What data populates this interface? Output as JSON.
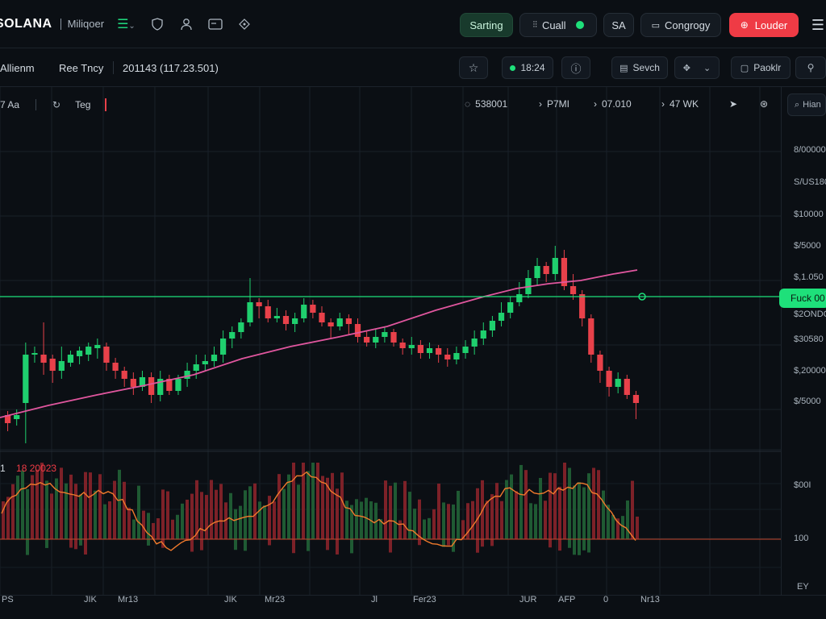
{
  "nav": {
    "logo": "SOLANA",
    "link": "Miliqoer",
    "btn_starting": "Sarting",
    "btn_cuall": "Cuall",
    "btn_sa": "SA",
    "btn_congrogy": "Congrogy",
    "btn_louder": "Louder"
  },
  "toolbar": {
    "item1": "Allienm",
    "item2": "Ree Tncy",
    "pair": "201143 (117.23.501)",
    "time": "18:24",
    "sevch": "Sevch",
    "paoklr": "Paoklr"
  },
  "chart_header": {
    "left1": "7 Aa",
    "left2": "Teg",
    "stat1": "538001",
    "stat2": "P7MI",
    "stat3": "07.010",
    "stat4": "47 WK",
    "rail_top": "Hian"
  },
  "price_axis": [
    "8/00000",
    "S/US180",
    "$10000",
    "$/5000",
    "$,1.050",
    "$2ONDO",
    "$30580",
    "$,20000",
    "$/5000"
  ],
  "price_tag": "Fuck 00",
  "indicator": {
    "label_a": "1",
    "label_b": "18",
    "label_c": "20023",
    "axis": [
      "$00I",
      "100",
      "EY"
    ]
  },
  "time_axis": [
    "PS",
    "JIK",
    "Mr13",
    "JIK",
    "Mr23",
    "Jl",
    "Fer23",
    "JUR",
    "AFP",
    "0",
    "Nr13"
  ],
  "colors": {
    "up": "#1fcf6e",
    "down": "#e8414a",
    "ma": "#e0569e",
    "level": "#1ee07a",
    "osc": "#f07a2c"
  },
  "chart_data": {
    "type": "candlestick",
    "candles": [
      [
        515,
        525,
        510,
        535
      ],
      [
        520,
        515,
        508,
        528
      ],
      [
        500,
        440,
        425,
        550
      ],
      [
        440,
        438,
        430,
        450
      ],
      [
        440,
        450,
        400,
        465
      ],
      [
        445,
        460,
        440,
        475
      ],
      [
        460,
        448,
        430,
        470
      ],
      [
        450,
        440,
        435,
        455
      ],
      [
        442,
        435,
        430,
        452
      ],
      [
        440,
        430,
        425,
        448
      ],
      [
        432,
        428,
        420,
        445
      ],
      [
        430,
        450,
        425,
        460
      ],
      [
        450,
        460,
        444,
        470
      ],
      [
        460,
        470,
        455,
        480
      ],
      [
        470,
        480,
        462,
        490
      ],
      [
        480,
        468,
        460,
        485
      ],
      [
        468,
        490,
        462,
        500
      ],
      [
        490,
        470,
        460,
        498
      ],
      [
        470,
        485,
        465,
        490
      ],
      [
        485,
        470,
        465,
        490
      ],
      [
        470,
        460,
        450,
        480
      ],
      [
        460,
        452,
        440,
        470
      ],
      [
        452,
        448,
        440,
        460
      ],
      [
        448,
        440,
        430,
        455
      ],
      [
        440,
        420,
        410,
        450
      ],
      [
        420,
        412,
        405,
        432
      ],
      [
        412,
        400,
        395,
        420
      ],
      [
        400,
        375,
        345,
        405
      ],
      [
        375,
        380,
        370,
        395
      ],
      [
        380,
        395,
        372,
        400
      ],
      [
        395,
        392,
        382,
        400
      ],
      [
        392,
        402,
        385,
        410
      ],
      [
        402,
        395,
        388,
        412
      ],
      [
        395,
        378,
        370,
        400
      ],
      [
        378,
        388,
        372,
        395
      ],
      [
        388,
        400,
        380,
        405
      ],
      [
        400,
        405,
        395,
        420
      ],
      [
        405,
        395,
        388,
        410
      ],
      [
        395,
        402,
        390,
        415
      ],
      [
        402,
        418,
        395,
        425
      ],
      [
        418,
        425,
        410,
        430
      ],
      [
        425,
        418,
        408,
        432
      ],
      [
        418,
        412,
        405,
        425
      ],
      [
        412,
        425,
        408,
        430
      ],
      [
        425,
        432,
        420,
        440
      ],
      [
        432,
        428,
        418,
        440
      ],
      [
        428,
        438,
        422,
        445
      ],
      [
        438,
        432,
        425,
        445
      ],
      [
        432,
        440,
        428,
        450
      ],
      [
        440,
        446,
        432,
        455
      ],
      [
        446,
        438,
        430,
        452
      ],
      [
        438,
        430,
        422,
        445
      ],
      [
        430,
        420,
        410,
        440
      ],
      [
        420,
        410,
        400,
        428
      ],
      [
        410,
        398,
        392,
        418
      ],
      [
        398,
        388,
        375,
        405
      ],
      [
        388,
        375,
        368,
        395
      ],
      [
        375,
        365,
        350,
        380
      ],
      [
        365,
        345,
        335,
        370
      ],
      [
        345,
        330,
        320,
        355
      ],
      [
        330,
        340,
        325,
        350
      ],
      [
        340,
        320,
        305,
        348
      ],
      [
        320,
        355,
        310,
        360
      ],
      [
        355,
        365,
        340,
        372
      ],
      [
        365,
        395,
        360,
        405
      ],
      [
        395,
        440,
        390,
        450
      ],
      [
        440,
        460,
        435,
        475
      ],
      [
        460,
        480,
        455,
        492
      ],
      [
        480,
        470,
        462,
        488
      ],
      [
        470,
        490,
        465,
        495
      ],
      [
        490,
        500,
        485,
        520
      ]
    ],
    "ma": [
      [
        0,
        518
      ],
      [
        60,
        503
      ],
      [
        120,
        490
      ],
      [
        180,
        478
      ],
      [
        240,
        465
      ],
      [
        300,
        445
      ],
      [
        360,
        430
      ],
      [
        420,
        418
      ],
      [
        480,
        405
      ],
      [
        540,
        385
      ],
      [
        600,
        368
      ],
      [
        640,
        358
      ],
      [
        680,
        352
      ],
      [
        720,
        348
      ],
      [
        760,
        340
      ],
      [
        790,
        335
      ]
    ],
    "level": 368
  }
}
